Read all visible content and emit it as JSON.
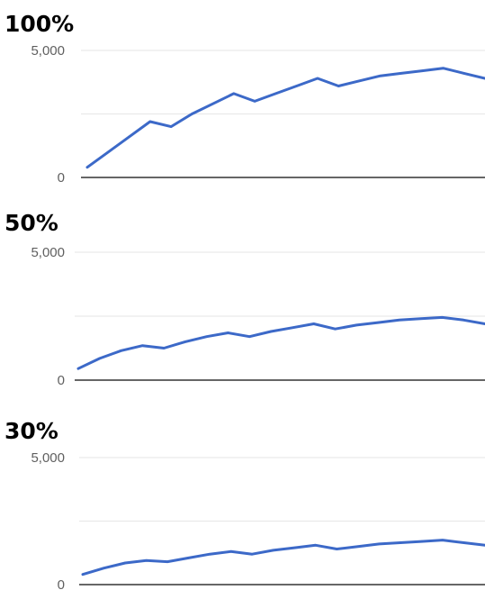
{
  "chart_data": [
    {
      "type": "line",
      "title": "100%",
      "ylim": [
        0,
        5000
      ],
      "y_ticks": [
        "0",
        "5,000"
      ],
      "gridlines": [
        2500
      ],
      "grid": true,
      "legend": "none",
      "color": "#3c69c8",
      "x": [
        1,
        2,
        3,
        4,
        5,
        6,
        7,
        8,
        9,
        10,
        11,
        12,
        13,
        14,
        15,
        16,
        17,
        18,
        19,
        20
      ],
      "values": [
        400,
        1000,
        1600,
        2200,
        2000,
        2500,
        2900,
        3300,
        3000,
        3300,
        3600,
        3900,
        3600,
        3800,
        4000,
        4100,
        4200,
        4300,
        4100,
        3900
      ]
    },
    {
      "type": "line",
      "title": "50%",
      "ylim": [
        0,
        5000
      ],
      "y_ticks": [
        "0",
        "5,000"
      ],
      "gridlines": [
        2500
      ],
      "grid": true,
      "legend": "none",
      "color": "#3c69c8",
      "x": [
        1,
        2,
        3,
        4,
        5,
        6,
        7,
        8,
        9,
        10,
        11,
        12,
        13,
        14,
        15,
        16,
        17,
        18,
        19,
        20
      ],
      "values": [
        450,
        850,
        1150,
        1350,
        1250,
        1500,
        1700,
        1850,
        1700,
        1900,
        2050,
        2200,
        2000,
        2150,
        2250,
        2350,
        2400,
        2450,
        2350,
        2200
      ]
    },
    {
      "type": "line",
      "title": "30%",
      "ylim": [
        0,
        5000
      ],
      "y_ticks": [
        "0",
        "5,000"
      ],
      "gridlines": [
        2500
      ],
      "grid": true,
      "legend": "none",
      "color": "#3c69c8",
      "x": [
        1,
        2,
        3,
        4,
        5,
        6,
        7,
        8,
        9,
        10,
        11,
        12,
        13,
        14,
        15,
        16,
        17,
        18,
        19,
        20
      ],
      "values": [
        400,
        650,
        850,
        950,
        900,
        1050,
        1200,
        1300,
        1200,
        1350,
        1450,
        1550,
        1400,
        1500,
        1600,
        1650,
        1700,
        1750,
        1650,
        1550
      ]
    }
  ]
}
